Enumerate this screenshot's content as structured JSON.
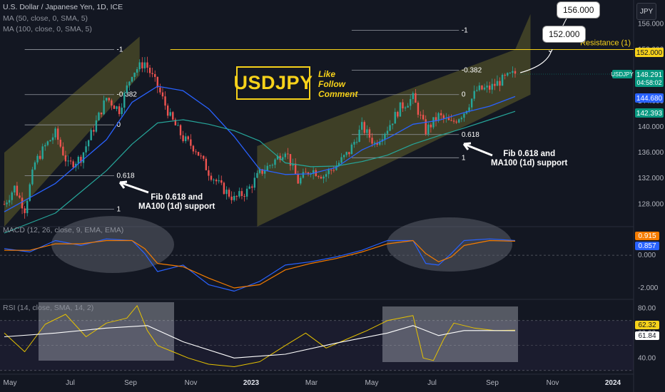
{
  "header": {
    "symbol_line": "U.S. Dollar / Japanese Yen, 1D, ICE",
    "ma50_label": "MA (50, close, 0, SMA, 5)",
    "ma100_label": "MA (100, close, 0, SMA, 5)",
    "currency": "JPY"
  },
  "brand": {
    "title": "USDJPY",
    "cta": [
      "Like",
      "Follow",
      "Comment"
    ]
  },
  "annotations": {
    "left_support": [
      "Fib 0.618 and",
      "MA100 (1d) support"
    ],
    "right_support": [
      "Fib 0.618 and",
      "MA100 (1d) support"
    ],
    "target_1": "152.000",
    "target_2": "156.000",
    "resistance_label": "Resistance (1)"
  },
  "chart_data": [
    {
      "type": "line",
      "title": "U.S. Dollar / Japanese Yen, 1D, ICE",
      "ylabel": "JPY",
      "ylim": [
        124.5,
        158.8
      ],
      "x_ticks": [
        "May",
        "Jul",
        "Sep",
        "Nov",
        "2023",
        "Mar",
        "May",
        "Jul",
        "Sep",
        "Nov",
        "2024"
      ],
      "y_ticks": [
        "156.000",
        "152.000",
        "148.000",
        "144.000",
        "140.000",
        "136.000",
        "132.000",
        "128.000"
      ],
      "series": [
        {
          "name": "USDJPY close",
          "x": [
            0,
            4,
            8,
            12,
            16,
            20,
            25,
            30,
            35,
            40,
            45,
            50,
            55,
            60,
            65,
            70,
            75,
            80,
            85,
            90,
            95,
            100,
            105,
            110,
            115,
            120,
            125,
            130,
            135,
            140,
            145,
            150,
            155,
            160,
            165,
            170,
            175,
            180,
            185,
            190,
            195,
            200
          ],
          "values": [
            128.0,
            130.6,
            127.2,
            134.4,
            137.0,
            139.0,
            134.0,
            135.2,
            139.8,
            144.5,
            142.6,
            148.4,
            150.0,
            146.2,
            141.5,
            138.2,
            136.5,
            133.0,
            130.6,
            128.8,
            130.0,
            132.8,
            134.4,
            136.5,
            131.5,
            133.4,
            132.4,
            134.0,
            136.1,
            140.0,
            137.4,
            139.8,
            143.0,
            144.5,
            139.4,
            141.7,
            140.5,
            142.3,
            145.7,
            146.0,
            147.3,
            148.3
          ]
        },
        {
          "name": "MA (50)",
          "x": [
            0,
            20,
            40,
            50,
            60,
            70,
            80,
            90,
            100,
            110,
            120,
            130,
            140,
            150,
            160,
            170,
            180,
            190,
            200
          ],
          "values": [
            126.8,
            131.2,
            138.0,
            143.8,
            146.3,
            145.6,
            142.8,
            138.5,
            133.4,
            132.6,
            132.7,
            133.7,
            136.4,
            138.2,
            140.4,
            141.0,
            142.2,
            143.2,
            144.7
          ]
        },
        {
          "name": "MA (100)",
          "x": [
            0,
            20,
            40,
            50,
            60,
            70,
            80,
            90,
            100,
            110,
            120,
            130,
            140,
            150,
            160,
            170,
            180,
            190,
            200
          ],
          "values": [
            123.5,
            126.6,
            133.2,
            137.3,
            140.6,
            141.1,
            140.4,
            139.4,
            137.8,
            134.4,
            133.8,
            133.9,
            134.6,
            135.6,
            137.3,
            138.6,
            139.8,
            141.1,
            142.4
          ]
        }
      ],
      "price_labels": [
        {
          "label": "USDJPY",
          "value": "148.291",
          "sub": "04:58:02",
          "color": "#089981"
        },
        {
          "label": "MA50",
          "value": "144.680",
          "color": "#2962ff"
        },
        {
          "label": "MA100",
          "value": "142.393",
          "color": "#089981"
        },
        {
          "label": "Resistance",
          "value": "152.000",
          "color": "#f7d21a"
        }
      ],
      "resistance_level": 152.0,
      "fibonacci_left": [
        {
          "level": "-1",
          "value": 152.0
        },
        {
          "level": "-0.382",
          "value": 145.0
        },
        {
          "level": "0",
          "value": 140.3
        },
        {
          "level": "0.618",
          "value": 132.4
        },
        {
          "level": "1",
          "value": 127.2
        }
      ],
      "fibonacci_right": [
        {
          "level": "-1",
          "value": 155.0
        },
        {
          "level": "-0.382",
          "value": 148.8
        },
        {
          "level": "0",
          "value": 145.0
        },
        {
          "level": "0.618",
          "value": 138.8
        },
        {
          "level": "1",
          "value": 135.2
        }
      ]
    },
    {
      "type": "line",
      "title": "MACD (12, 26, close, 9, EMA, EMA)",
      "ylim": [
        -2.7,
        1.75
      ],
      "y_ticks": [
        "-2.000",
        "0.000"
      ],
      "series": [
        {
          "name": "MACD",
          "x": [
            0,
            10,
            20,
            30,
            40,
            50,
            55,
            60,
            70,
            80,
            90,
            100,
            110,
            120,
            130,
            140,
            150,
            160,
            165,
            170,
            175,
            180,
            190,
            200
          ],
          "values": [
            0.4,
            0.2,
            0.9,
            0.6,
            1.0,
            0.9,
            0.1,
            -1.0,
            -0.6,
            -1.8,
            -2.2,
            -1.6,
            -0.6,
            -0.4,
            -0.1,
            0.3,
            0.9,
            0.9,
            -0.5,
            -0.6,
            0.1,
            0.9,
            1.0,
            0.9
          ]
        },
        {
          "name": "Signal",
          "x": [
            0,
            10,
            20,
            30,
            40,
            50,
            55,
            60,
            70,
            80,
            90,
            100,
            110,
            120,
            130,
            140,
            150,
            160,
            165,
            170,
            175,
            180,
            190,
            200
          ],
          "values": [
            0.3,
            0.3,
            0.7,
            0.7,
            0.9,
            0.9,
            0.4,
            -0.5,
            -0.7,
            -1.4,
            -2.0,
            -1.8,
            -0.9,
            -0.5,
            -0.2,
            0.2,
            0.7,
            0.9,
            0.1,
            -0.4,
            -0.1,
            0.6,
            0.9,
            0.86
          ]
        }
      ],
      "price_labels": [
        {
          "label": "MACD",
          "value": "0.915",
          "color": "#f57c00"
        },
        {
          "label": "Signal",
          "value": "0.857",
          "color": "#2962ff"
        }
      ]
    },
    {
      "type": "line",
      "title": "RSI (14, close, SMA, 14, 2)",
      "ylim": [
        27,
        87
      ],
      "y_ticks": [
        "80.00",
        "60.00",
        "40.00"
      ],
      "series": [
        {
          "name": "RSI",
          "x": [
            0,
            8,
            16,
            24,
            32,
            40,
            48,
            52,
            56,
            60,
            66,
            72,
            80,
            90,
            100,
            110,
            118,
            126,
            134,
            142,
            150,
            160,
            164,
            168,
            172,
            176,
            184,
            192,
            200
          ],
          "values": [
            60,
            45,
            67,
            75,
            57,
            68,
            72,
            82,
            62,
            50,
            45,
            40,
            35,
            33,
            37,
            50,
            60,
            48,
            55,
            62,
            70,
            74,
            40,
            38,
            55,
            68,
            64,
            62,
            62.32
          ]
        },
        {
          "name": "RSI-based MA",
          "x": [
            0,
            20,
            40,
            56,
            70,
            90,
            110,
            130,
            150,
            160,
            170,
            180,
            190,
            200
          ],
          "values": [
            57,
            60,
            64,
            66,
            53,
            40,
            43,
            52,
            60,
            66,
            58,
            62,
            62,
            61.84
          ]
        }
      ],
      "price_labels": [
        {
          "label": "RSI",
          "value": "62.32",
          "color": "#f7d21a"
        },
        {
          "label": "RSI MA",
          "value": "61.84",
          "color": "#ffffff"
        }
      ]
    }
  ]
}
